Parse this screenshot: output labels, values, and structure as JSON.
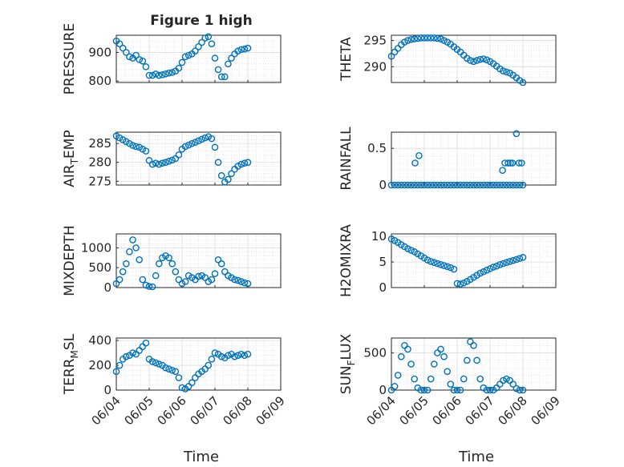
{
  "figure": {
    "title": "Figure 1 high",
    "x_ticks": [
      "06/04",
      "06/05",
      "06/06",
      "06/07",
      "06/08",
      "06/09"
    ],
    "x_label": "Time",
    "marker_color": "#0072bd"
  },
  "chart_data": [
    {
      "type": "scatter",
      "ylabel": "PRESSURE",
      "xlim": [
        0,
        5
      ],
      "ylim": [
        795,
        960
      ],
      "yticks": [
        800,
        900
      ],
      "ytick_labels": [
        "800",
        "900"
      ],
      "x": [
        0.0,
        0.1,
        0.2,
        0.3,
        0.4,
        0.5,
        0.6,
        0.7,
        0.8,
        0.9,
        1.0,
        1.1,
        1.2,
        1.3,
        1.4,
        1.5,
        1.6,
        1.7,
        1.8,
        1.9,
        2.0,
        2.1,
        2.2,
        2.3,
        2.4,
        2.5,
        2.6,
        2.7,
        2.8,
        2.9,
        3.0,
        3.1,
        3.2,
        3.3,
        3.4,
        3.5,
        3.6,
        3.7,
        3.8,
        3.9,
        4.0
      ],
      "y": [
        940,
        930,
        915,
        900,
        885,
        880,
        890,
        875,
        870,
        850,
        820,
        820,
        825,
        820,
        822,
        825,
        828,
        830,
        835,
        845,
        865,
        885,
        890,
        895,
        905,
        920,
        935,
        950,
        955,
        930,
        880,
        840,
        815,
        815,
        860,
        880,
        895,
        905,
        910,
        912,
        915
      ]
    },
    {
      "type": "scatter",
      "ylabel": "THETA",
      "xlim": [
        0,
        5
      ],
      "ylim": [
        287,
        296
      ],
      "yticks": [
        290,
        295
      ],
      "ytick_labels": [
        "290",
        "295"
      ],
      "x": [
        0.0,
        0.1,
        0.2,
        0.3,
        0.4,
        0.5,
        0.6,
        0.7,
        0.8,
        0.9,
        1.0,
        1.1,
        1.2,
        1.3,
        1.4,
        1.5,
        1.6,
        1.7,
        1.8,
        1.9,
        2.0,
        2.1,
        2.2,
        2.3,
        2.4,
        2.5,
        2.6,
        2.7,
        2.8,
        2.9,
        3.0,
        3.1,
        3.2,
        3.3,
        3.4,
        3.5,
        3.6,
        3.7,
        3.8,
        3.9,
        4.0
      ],
      "y": [
        292.0,
        292.8,
        293.5,
        294.2,
        294.7,
        295.0,
        295.2,
        295.3,
        295.4,
        295.5,
        295.5,
        295.5,
        295.5,
        295.5,
        295.4,
        295.3,
        295.0,
        294.7,
        294.3,
        293.8,
        293.3,
        292.8,
        292.2,
        291.6,
        291.2,
        291.0,
        291.2,
        291.4,
        291.5,
        291.3,
        291.0,
        290.6,
        290.1,
        289.6,
        289.2,
        289.0,
        288.8,
        288.4,
        287.9,
        287.4,
        287.0
      ]
    },
    {
      "type": "scatter",
      "ylabel": "AIR_TEMP",
      "xlim": [
        0,
        5
      ],
      "ylim": [
        274,
        288
      ],
      "yticks": [
        275,
        280,
        285
      ],
      "ytick_labels": [
        "275",
        "280",
        "285"
      ],
      "x": [
        0.0,
        0.1,
        0.2,
        0.3,
        0.4,
        0.5,
        0.6,
        0.7,
        0.8,
        0.9,
        1.0,
        1.1,
        1.2,
        1.3,
        1.4,
        1.5,
        1.6,
        1.7,
        1.8,
        1.9,
        2.0,
        2.1,
        2.2,
        2.3,
        2.4,
        2.5,
        2.6,
        2.7,
        2.8,
        2.9,
        3.0,
        3.1,
        3.2,
        3.3,
        3.4,
        3.5,
        3.6,
        3.7,
        3.8,
        3.9,
        4.0
      ],
      "y": [
        287.0,
        286.5,
        286.0,
        285.5,
        285.0,
        284.5,
        284.2,
        284.0,
        283.5,
        283.0,
        280.5,
        279.5,
        279.8,
        279.5,
        279.8,
        280.0,
        280.3,
        280.6,
        281.0,
        282.0,
        283.5,
        284.2,
        284.6,
        285.0,
        285.3,
        285.7,
        286.1,
        286.5,
        286.8,
        286.3,
        284.0,
        280.0,
        276.5,
        274.8,
        275.5,
        277.0,
        278.2,
        279.0,
        279.5,
        279.8,
        280.0
      ]
    },
    {
      "type": "scatter",
      "ylabel": "RAINFALL",
      "xlim": [
        0,
        5
      ],
      "ylim": [
        0,
        0.72
      ],
      "yticks": [
        0,
        0.5
      ],
      "ytick_labels": [
        "0",
        "0.5"
      ],
      "x": [
        0.0,
        0.1,
        0.2,
        0.3,
        0.4,
        0.5,
        0.6,
        0.7,
        0.8,
        0.9,
        1.0,
        1.1,
        1.2,
        1.3,
        1.4,
        1.5,
        1.6,
        1.7,
        1.8,
        1.9,
        2.0,
        2.1,
        2.2,
        2.3,
        2.4,
        2.5,
        2.6,
        2.7,
        2.8,
        2.9,
        3.0,
        3.1,
        3.2,
        3.3,
        3.4,
        3.5,
        3.6,
        3.7,
        3.8,
        3.9,
        4.0,
        0.72,
        0.84,
        3.38,
        3.45,
        3.55,
        3.62,
        3.68,
        3.8,
        3.88,
        3.96
      ],
      "y": [
        0,
        0,
        0,
        0,
        0,
        0,
        0,
        0,
        0,
        0,
        0,
        0,
        0,
        0,
        0,
        0,
        0,
        0,
        0,
        0,
        0,
        0,
        0,
        0,
        0,
        0,
        0,
        0,
        0,
        0,
        0,
        0,
        0,
        0,
        0,
        0,
        0,
        0,
        0,
        0,
        0,
        0.3,
        0.4,
        0.2,
        0.3,
        0.3,
        0.3,
        0.3,
        0.7,
        0.3,
        0.3
      ]
    },
    {
      "type": "scatter",
      "ylabel": "MIXDEPTH",
      "xlim": [
        0,
        5
      ],
      "ylim": [
        0,
        1350
      ],
      "yticks": [
        0,
        500,
        1000
      ],
      "ytick_labels": [
        "0",
        "500",
        "1000"
      ],
      "x": [
        0.0,
        0.1,
        0.2,
        0.3,
        0.4,
        0.5,
        0.6,
        0.7,
        0.8,
        0.9,
        1.0,
        1.1,
        1.2,
        1.3,
        1.4,
        1.5,
        1.6,
        1.7,
        1.8,
        1.9,
        2.0,
        2.1,
        2.2,
        2.3,
        2.4,
        2.5,
        2.6,
        2.7,
        2.8,
        2.9,
        3.0,
        3.1,
        3.2,
        3.3,
        3.4,
        3.5,
        3.6,
        3.7,
        3.8,
        3.9,
        4.0
      ],
      "y": [
        100,
        200,
        400,
        600,
        900,
        1200,
        1000,
        700,
        200,
        60,
        30,
        20,
        300,
        600,
        750,
        800,
        750,
        600,
        400,
        200,
        100,
        150,
        300,
        250,
        200,
        280,
        300,
        250,
        150,
        200,
        350,
        700,
        600,
        400,
        300,
        250,
        200,
        180,
        150,
        120,
        100
      ]
    },
    {
      "type": "scatter",
      "ylabel": "H2OMIXRA",
      "xlim": [
        0,
        5
      ],
      "ylim": [
        0,
        10.5
      ],
      "yticks": [
        0,
        5,
        10
      ],
      "ytick_labels": [
        "0",
        "5",
        "10"
      ],
      "x": [
        0.0,
        0.1,
        0.2,
        0.3,
        0.4,
        0.5,
        0.6,
        0.7,
        0.8,
        0.9,
        1.0,
        1.1,
        1.2,
        1.3,
        1.4,
        1.5,
        1.6,
        1.7,
        1.8,
        1.9,
        2.0,
        2.1,
        2.2,
        2.3,
        2.4,
        2.5,
        2.6,
        2.7,
        2.8,
        2.9,
        3.0,
        3.1,
        3.2,
        3.3,
        3.4,
        3.5,
        3.6,
        3.7,
        3.8,
        3.9,
        4.0
      ],
      "y": [
        9.5,
        9.2,
        8.8,
        8.4,
        8.0,
        7.6,
        7.3,
        7.0,
        6.6,
        6.2,
        5.8,
        5.4,
        5.1,
        4.9,
        4.7,
        4.5,
        4.3,
        4.1,
        3.9,
        3.6,
        0.8,
        0.7,
        0.9,
        1.2,
        1.6,
        2.0,
        2.4,
        2.8,
        3.1,
        3.4,
        3.7,
        4.0,
        4.2,
        4.5,
        4.7,
        4.9,
        5.1,
        5.3,
        5.5,
        5.7,
        5.9
      ]
    },
    {
      "type": "scatter",
      "ylabel": "TERR_MSL",
      "xlim": [
        0,
        5
      ],
      "ylim": [
        0,
        420
      ],
      "yticks": [
        0,
        200,
        400
      ],
      "ytick_labels": [
        "0",
        "200",
        "400"
      ],
      "x": [
        0.0,
        0.1,
        0.2,
        0.3,
        0.4,
        0.5,
        0.6,
        0.7,
        0.8,
        0.9,
        1.0,
        1.1,
        1.2,
        1.3,
        1.4,
        1.5,
        1.6,
        1.7,
        1.8,
        1.9,
        2.0,
        2.1,
        2.2,
        2.3,
        2.4,
        2.5,
        2.6,
        2.7,
        2.8,
        2.9,
        3.0,
        3.1,
        3.2,
        3.3,
        3.4,
        3.5,
        3.6,
        3.7,
        3.8,
        3.9,
        4.0
      ],
      "y": [
        150,
        200,
        250,
        270,
        280,
        300,
        290,
        320,
        350,
        380,
        250,
        230,
        220,
        210,
        200,
        180,
        170,
        160,
        150,
        100,
        20,
        10,
        30,
        60,
        100,
        130,
        150,
        170,
        200,
        250,
        300,
        290,
        270,
        260,
        280,
        290,
        270,
        280,
        290,
        280,
        290
      ]
    },
    {
      "type": "scatter",
      "ylabel": "SUN_FLUX",
      "xlim": [
        0,
        5
      ],
      "ylim": [
        0,
        700
      ],
      "yticks": [
        0,
        500
      ],
      "ytick_labels": [
        "0",
        "500"
      ],
      "x": [
        0.0,
        0.1,
        0.2,
        0.3,
        0.4,
        0.5,
        0.6,
        0.7,
        0.8,
        0.9,
        1.0,
        1.1,
        1.2,
        1.3,
        1.4,
        1.5,
        1.6,
        1.7,
        1.8,
        1.9,
        2.0,
        2.1,
        2.2,
        2.3,
        2.4,
        2.5,
        2.6,
        2.7,
        2.8,
        2.9,
        3.0,
        3.1,
        3.2,
        3.3,
        3.4,
        3.5,
        3.6,
        3.7,
        3.8,
        3.9,
        4.0
      ],
      "y": [
        0,
        50,
        200,
        450,
        600,
        550,
        350,
        150,
        30,
        0,
        0,
        0,
        150,
        350,
        500,
        550,
        450,
        250,
        80,
        0,
        0,
        0,
        150,
        400,
        650,
        600,
        400,
        150,
        30,
        0,
        0,
        0,
        30,
        80,
        130,
        150,
        130,
        80,
        20,
        0,
        0
      ]
    }
  ]
}
